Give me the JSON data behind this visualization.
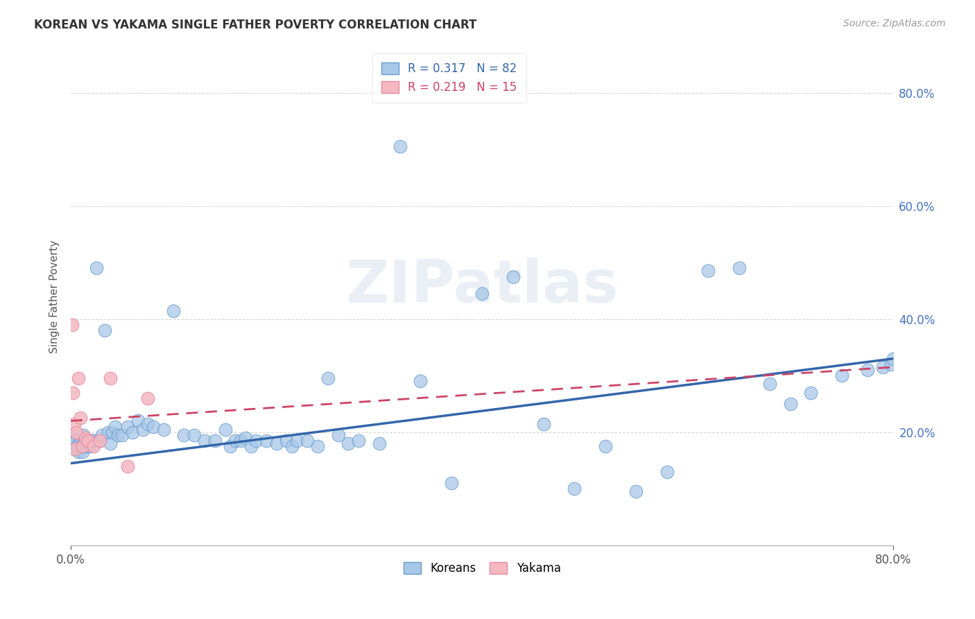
{
  "title": "KOREAN VS YAKAMA SINGLE FATHER POVERTY CORRELATION CHART",
  "source": "Source: ZipAtlas.com",
  "ylabel": "Single Father Poverty",
  "legend_korean_r": "R = 0.317",
  "legend_korean_n": "N = 82",
  "legend_yakama_r": "R = 0.219",
  "legend_yakama_n": "N = 15",
  "korean_fill": "#a8c8e8",
  "korean_edge": "#6699cc",
  "yakama_fill": "#f4b8c0",
  "yakama_edge": "#e888a0",
  "korean_line_color": "#3366aa",
  "yakama_line_color": "#cc4466",
  "background_color": "#ffffff",
  "grid_color": "#cccccc",
  "watermark": "ZIPatlas",
  "right_axis_color": "#4472c4",
  "korean_line_x0": 0.0,
  "korean_line_y0": 0.145,
  "korean_line_x1": 0.8,
  "korean_line_y1": 0.33,
  "yakama_line_x0": 0.0,
  "yakama_line_y0": 0.22,
  "yakama_line_x1": 0.8,
  "yakama_line_y1": 0.315,
  "xlim": [
    0.0,
    0.8
  ],
  "ylim": [
    0.0,
    0.88
  ],
  "korean_x": [
    0.001,
    0.002,
    0.003,
    0.004,
    0.005,
    0.006,
    0.007,
    0.008,
    0.009,
    0.01,
    0.011,
    0.012,
    0.013,
    0.014,
    0.015,
    0.016,
    0.017,
    0.018,
    0.019,
    0.02,
    0.022,
    0.025,
    0.028,
    0.03,
    0.033,
    0.036,
    0.038,
    0.04,
    0.043,
    0.046,
    0.05,
    0.055,
    0.06,
    0.065,
    0.07,
    0.075,
    0.08,
    0.09,
    0.1,
    0.11,
    0.12,
    0.13,
    0.14,
    0.15,
    0.155,
    0.16,
    0.165,
    0.17,
    0.175,
    0.18,
    0.19,
    0.2,
    0.21,
    0.215,
    0.22,
    0.23,
    0.24,
    0.25,
    0.26,
    0.27,
    0.28,
    0.3,
    0.32,
    0.34,
    0.37,
    0.4,
    0.43,
    0.46,
    0.49,
    0.52,
    0.55,
    0.58,
    0.62,
    0.65,
    0.68,
    0.7,
    0.72,
    0.75,
    0.775,
    0.79,
    0.798,
    0.8
  ],
  "korean_y": [
    0.185,
    0.19,
    0.18,
    0.17,
    0.185,
    0.175,
    0.165,
    0.18,
    0.19,
    0.175,
    0.165,
    0.195,
    0.175,
    0.185,
    0.175,
    0.185,
    0.18,
    0.185,
    0.175,
    0.185,
    0.185,
    0.49,
    0.185,
    0.195,
    0.38,
    0.2,
    0.18,
    0.2,
    0.21,
    0.195,
    0.195,
    0.21,
    0.2,
    0.22,
    0.205,
    0.215,
    0.21,
    0.205,
    0.415,
    0.195,
    0.195,
    0.185,
    0.185,
    0.205,
    0.175,
    0.185,
    0.185,
    0.19,
    0.175,
    0.185,
    0.185,
    0.18,
    0.185,
    0.175,
    0.185,
    0.185,
    0.175,
    0.295,
    0.195,
    0.18,
    0.185,
    0.18,
    0.705,
    0.29,
    0.11,
    0.445,
    0.475,
    0.215,
    0.1,
    0.175,
    0.095,
    0.13,
    0.485,
    0.49,
    0.285,
    0.25,
    0.27,
    0.3,
    0.31,
    0.315,
    0.32,
    0.33
  ],
  "yakama_x": [
    0.001,
    0.002,
    0.003,
    0.004,
    0.005,
    0.007,
    0.009,
    0.011,
    0.014,
    0.017,
    0.022,
    0.028,
    0.038,
    0.055,
    0.075
  ],
  "yakama_y": [
    0.39,
    0.27,
    0.215,
    0.17,
    0.2,
    0.295,
    0.225,
    0.175,
    0.19,
    0.185,
    0.175,
    0.185,
    0.295,
    0.14,
    0.26
  ]
}
